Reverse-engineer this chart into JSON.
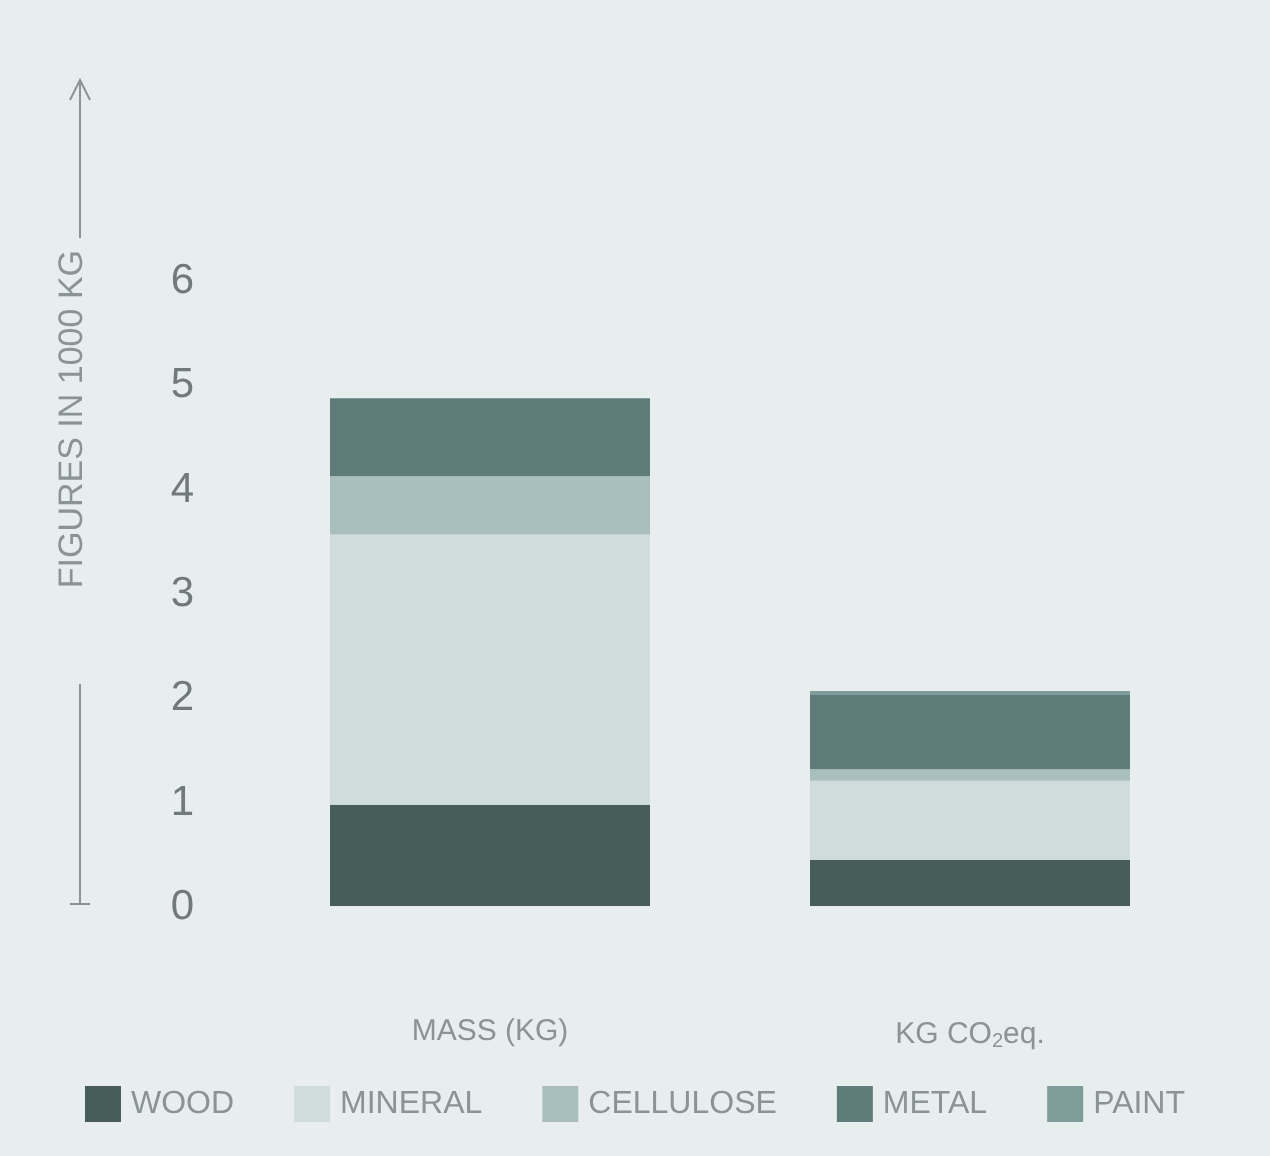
{
  "chart_data": {
    "type": "bar",
    "stacked": true,
    "ylabel": "FIGURES IN 1000 KG",
    "categories": [
      "MASS (KG)",
      "KG CO$_{2}$eq."
    ],
    "series": [
      {
        "name": "WOOD",
        "color": "#475d5a",
        "values": [
          0.97,
          0.44
        ]
      },
      {
        "name": "MINERAL",
        "color": "#d0dcdc",
        "values": [
          2.59,
          0.76
        ]
      },
      {
        "name": "CELLULOSE",
        "color": "#a9bfbd",
        "values": [
          0.56,
          0.11
        ]
      },
      {
        "name": "METAL",
        "color": "#5e7c7a",
        "values": [
          0.74,
          0.72
        ]
      },
      {
        "name": "PAINT",
        "color": "#7e9c9a",
        "values": [
          0.01,
          0.03
        ]
      }
    ],
    "ylim": [
      0,
      6
    ],
    "yticks": [
      0,
      1,
      2,
      3,
      4,
      5,
      6
    ],
    "grid": false,
    "legend": "bottom"
  }
}
